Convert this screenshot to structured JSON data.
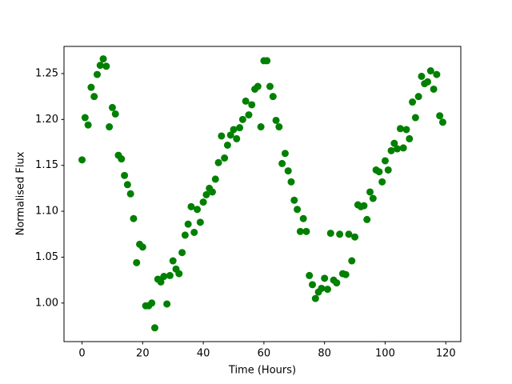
{
  "chart_data": {
    "type": "scatter",
    "xlabel": "Time (Hours)",
    "ylabel": "Normalised Flux",
    "color": "#008000",
    "x": [
      0,
      1,
      2,
      3,
      4,
      5,
      6,
      7,
      8,
      9,
      10,
      11,
      12,
      13,
      14,
      15,
      16,
      17,
      18,
      19,
      20,
      21,
      22,
      23,
      24,
      25,
      26,
      27,
      28,
      29,
      30,
      31,
      32,
      33,
      34,
      35,
      36,
      37,
      38,
      39,
      40,
      41,
      42,
      43,
      44,
      45,
      46,
      47,
      48,
      49,
      50,
      51,
      52,
      53,
      54,
      55,
      56,
      57,
      58,
      59,
      60,
      61,
      62,
      63,
      64,
      65,
      66,
      67,
      68,
      69,
      70,
      71,
      72,
      73,
      74,
      75,
      76,
      77,
      78,
      79,
      80,
      81,
      82,
      83,
      84,
      85,
      86,
      87,
      88,
      89,
      90,
      91,
      92,
      93,
      94,
      95,
      96,
      97,
      98,
      99,
      100,
      101,
      102,
      103,
      104,
      105,
      106,
      107,
      108,
      109,
      110,
      111,
      112,
      113,
      114,
      115,
      116,
      117,
      118,
      119
    ],
    "values": [
      1.156,
      1.202,
      1.194,
      1.235,
      1.225,
      1.249,
      1.259,
      1.266,
      1.258,
      1.192,
      1.213,
      1.206,
      1.161,
      1.157,
      1.139,
      1.129,
      1.119,
      1.092,
      1.044,
      1.064,
      1.061,
      0.997,
      0.997,
      1.0,
      0.973,
      1.026,
      1.023,
      1.029,
      0.999,
      1.03,
      1.046,
      1.037,
      1.032,
      1.055,
      1.074,
      1.086,
      1.105,
      1.077,
      1.102,
      1.088,
      1.11,
      1.118,
      1.125,
      1.121,
      1.135,
      1.153,
      1.182,
      1.158,
      1.172,
      1.183,
      1.189,
      1.179,
      1.191,
      1.2,
      1.22,
      1.205,
      1.216,
      1.233,
      1.236,
      1.192,
      1.264,
      1.264,
      1.236,
      1.225,
      1.199,
      1.192,
      1.152,
      1.163,
      1.144,
      1.132,
      1.112,
      1.102,
      1.078,
      1.092,
      1.078,
      1.03,
      1.02,
      1.005,
      1.012,
      1.016,
      1.027,
      1.015,
      1.076,
      1.025,
      1.022,
      1.075,
      1.032,
      1.031,
      1.075,
      1.046,
      1.072,
      1.107,
      1.105,
      1.106,
      1.091,
      1.121,
      1.114,
      1.145,
      1.143,
      1.132,
      1.155,
      1.145,
      1.166,
      1.174,
      1.168,
      1.19,
      1.169,
      1.189,
      1.179,
      1.219,
      1.202,
      1.225,
      1.247,
      1.239,
      1.241,
      1.253,
      1.233,
      1.249,
      1.204,
      1.197
    ],
    "xlim": [
      -5.95,
      124.95
    ],
    "ylim": [
      0.958,
      1.2796
    ],
    "xticks": [
      0,
      20,
      40,
      60,
      80,
      100,
      120
    ],
    "yticks": [
      {
        "value": 1,
        "label": "1.00"
      },
      1.05,
      {
        "value": 1.1,
        "label": "1.10"
      },
      1.15,
      {
        "value": 1.2,
        "label": "1.20"
      },
      1.25
    ]
  }
}
